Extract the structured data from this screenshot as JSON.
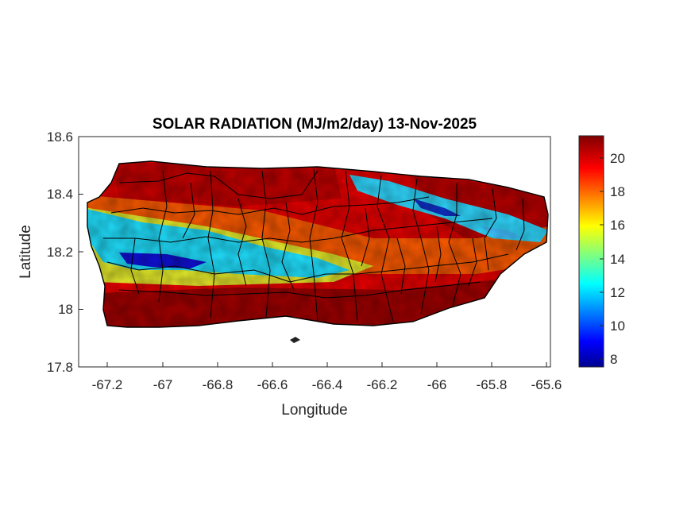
{
  "map": {
    "title": "SOLAR RADIATION (MJ/m2/day) 13-Nov-2025",
    "xlabel": "Longitude",
    "ylabel": "Latitude",
    "xlim": [
      -67.3,
      -65.58
    ],
    "ylim": [
      17.8,
      18.6
    ],
    "xticks": [
      "-67.2",
      "-67",
      "-66.8",
      "-66.6",
      "-66.4",
      "-66.2",
      "-66",
      "-65.8",
      "-65.6"
    ],
    "yticks": [
      "18.6",
      "18.4",
      "18.2",
      "18",
      "17.8"
    ],
    "colormap": "jet",
    "colorbar": {
      "range": [
        7.6,
        21.4
      ],
      "ticks": [
        "20",
        "18",
        "16",
        "14",
        "12",
        "10",
        "8"
      ]
    },
    "region": "Puerto Rico",
    "pattern": [
      {
        "area": "south coast",
        "level": "high (~20-21)"
      },
      {
        "area": "central-west interior band",
        "level": "low (~8-13)"
      },
      {
        "area": "north-central",
        "level": "high (~18-21)"
      },
      {
        "area": "northeast interior band",
        "level": "low (~11-13)"
      },
      {
        "area": "east",
        "level": "high (~19-21)"
      }
    ]
  }
}
